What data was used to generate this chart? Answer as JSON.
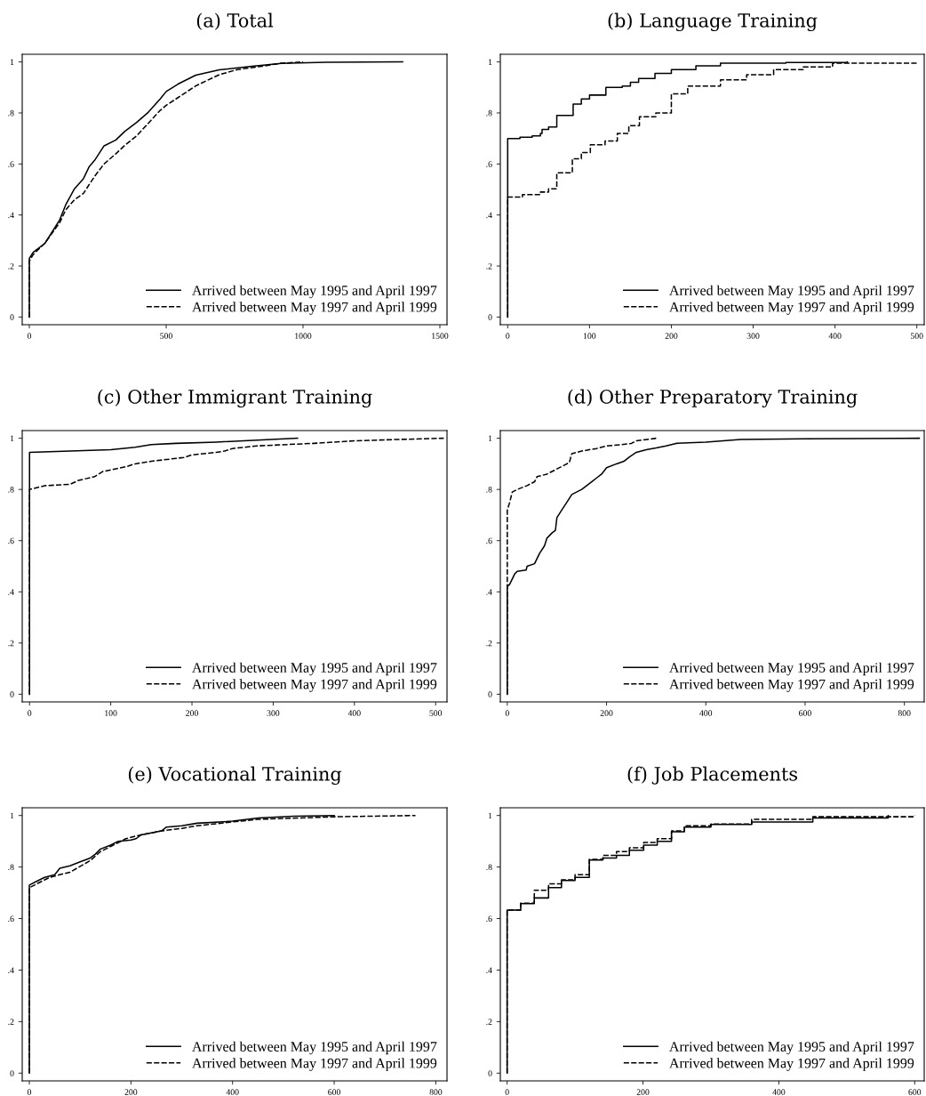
{
  "chart_data": [
    {
      "type": "line",
      "title": "(a) Total",
      "xlim": [
        -26,
        1526
      ],
      "xticks": [
        0,
        500,
        1000,
        1500
      ],
      "ylim": [
        -0.03,
        1.03
      ],
      "yticks": [
        0,
        {
          "value": 0.2,
          "label": ".2"
        },
        {
          "value": 0.4,
          "label": ".4"
        },
        {
          "value": 0.6,
          "label": ".6"
        },
        {
          "value": 0.8,
          "label": ".8"
        },
        1
      ],
      "legend": "bottom right",
      "grid": false,
      "series": [
        {
          "name": "Arrived between May 1995 and April 1997",
          "color": "#000000",
          "line_style": "solid",
          "x": [
            0,
            0,
            14,
            57,
            111,
            133,
            165,
            198,
            219,
            241,
            273,
            316,
            349,
            392,
            435,
            478,
            500,
            543,
            608,
            694,
            813,
            921,
            1083,
            1364
          ],
          "values": [
            0,
            0.23,
            0.254,
            0.289,
            0.381,
            0.44,
            0.503,
            0.543,
            0.59,
            0.618,
            0.671,
            0.694,
            0.728,
            0.763,
            0.803,
            0.855,
            0.884,
            0.913,
            0.948,
            0.969,
            0.983,
            0.994,
            0.999,
            1.0
          ]
        },
        {
          "name": "Arrived between May 1997 and April 1999",
          "color": "#000000",
          "line_style": "dashed",
          "x": [
            0,
            0,
            14,
            57,
            111,
            133,
            165,
            198,
            219,
            241,
            273,
            316,
            349,
            392,
            435,
            478,
            500,
            543,
            608,
            694,
            760,
            850,
            921,
            1000
          ],
          "values": [
            0,
            0.22,
            0.245,
            0.29,
            0.37,
            0.42,
            0.46,
            0.485,
            0.52,
            0.555,
            0.6,
            0.64,
            0.673,
            0.71,
            0.76,
            0.81,
            0.83,
            0.86,
            0.906,
            0.95,
            0.97,
            0.983,
            0.995,
            1.0
          ]
        }
      ]
    },
    {
      "type": "step",
      "title": "(b) Language Training",
      "xlim": [
        -9,
        509
      ],
      "xticks": [
        0,
        100,
        200,
        300,
        400,
        500
      ],
      "ylim": [
        -0.03,
        1.03
      ],
      "yticks": [
        0,
        {
          "value": 0.2,
          "label": ".2"
        },
        {
          "value": 0.4,
          "label": ".4"
        },
        {
          "value": 0.6,
          "label": ".6"
        },
        {
          "value": 0.8,
          "label": ".8"
        },
        1
      ],
      "legend": "bottom right",
      "grid": false,
      "series": [
        {
          "name": "Arrived between May 1995 and April 1997",
          "color": "#000000",
          "line_style": "solid",
          "x": [
            0,
            0,
            15,
            30,
            40,
            42,
            50,
            60,
            80,
            90,
            100,
            120,
            140,
            150,
            160,
            180,
            200,
            230,
            260,
            340,
            415
          ],
          "values": [
            0,
            0.7,
            0.705,
            0.71,
            0.72,
            0.735,
            0.745,
            0.79,
            0.835,
            0.855,
            0.87,
            0.9,
            0.905,
            0.92,
            0.935,
            0.955,
            0.97,
            0.985,
            0.995,
            0.998,
            1.0
          ]
        },
        {
          "name": "Arrived between May 1997 and April 1999",
          "color": "#000000",
          "line_style": "dashed",
          "x": [
            0,
            0,
            18,
            40,
            50,
            60,
            79,
            90,
            101,
            119,
            134,
            148,
            161,
            181,
            200,
            220,
            260,
            292,
            325,
            361,
            397,
            500
          ],
          "values": [
            0,
            0.47,
            0.48,
            0.49,
            0.503,
            0.565,
            0.62,
            0.645,
            0.675,
            0.69,
            0.72,
            0.75,
            0.785,
            0.8,
            0.875,
            0.905,
            0.93,
            0.95,
            0.97,
            0.98,
            0.995,
            1.0
          ]
        }
      ]
    },
    {
      "type": "line",
      "title": "(c) Other Immigrant Training",
      "xlim": [
        -9,
        514
      ],
      "xticks": [
        0,
        100,
        200,
        300,
        400,
        500
      ],
      "ylim": [
        -0.03,
        1.03
      ],
      "yticks": [
        0,
        {
          "value": 0.2,
          "label": ".2"
        },
        {
          "value": 0.4,
          "label": ".4"
        },
        {
          "value": 0.6,
          "label": ".6"
        },
        {
          "value": 0.8,
          "label": ".8"
        },
        1
      ],
      "legend": "bottom right",
      "grid": false,
      "series": [
        {
          "name": "Arrived between May 1995 and April 1997",
          "color": "#000000",
          "line_style": "solid",
          "x": [
            0,
            0,
            50,
            100,
            130,
            150,
            180,
            230,
            330
          ],
          "values": [
            0,
            0.945,
            0.95,
            0.955,
            0.965,
            0.975,
            0.98,
            0.985,
            1.0
          ]
        },
        {
          "name": "Arrived between May 1997 and April 1999",
          "color": "#000000",
          "line_style": "dashed",
          "x": [
            0,
            0,
            20,
            50,
            60,
            80,
            90,
            120,
            130,
            150,
            190,
            200,
            230,
            240,
            250,
            280,
            350,
            400,
            450,
            510
          ],
          "values": [
            0,
            0.8,
            0.815,
            0.82,
            0.835,
            0.85,
            0.87,
            0.89,
            0.9,
            0.91,
            0.925,
            0.935,
            0.945,
            0.95,
            0.96,
            0.97,
            0.98,
            0.99,
            0.995,
            1.0
          ]
        }
      ]
    },
    {
      "type": "line",
      "title": "(d) Other Preparatory Training",
      "xlim": [
        -14,
        840
      ],
      "xticks": [
        0,
        200,
        400,
        600,
        800
      ],
      "ylim": [
        -0.03,
        1.03
      ],
      "yticks": [
        0,
        {
          "value": 0.2,
          "label": ".2"
        },
        {
          "value": 0.4,
          "label": ".4"
        },
        {
          "value": 0.6,
          "label": ".6"
        },
        {
          "value": 0.8,
          "label": ".8"
        },
        1
      ],
      "legend": "bottom right",
      "grid": false,
      "series": [
        {
          "name": "Arrived between May 1995 and April 1997",
          "color": "#000000",
          "line_style": "solid",
          "x": [
            0,
            0,
            5,
            10,
            15,
            20,
            38,
            40,
            55,
            60,
            65,
            75,
            80,
            90,
            97,
            100,
            110,
            120,
            130,
            150,
            170,
            180,
            190,
            200,
            220,
            235,
            245,
            260,
            280,
            300,
            320,
            340,
            400,
            470,
            600,
            830
          ],
          "values": [
            0,
            0.42,
            0.43,
            0.45,
            0.47,
            0.48,
            0.485,
            0.5,
            0.51,
            0.53,
            0.55,
            0.58,
            0.61,
            0.63,
            0.64,
            0.69,
            0.72,
            0.75,
            0.78,
            0.8,
            0.83,
            0.845,
            0.86,
            0.885,
            0.9,
            0.91,
            0.925,
            0.945,
            0.955,
            0.962,
            0.97,
            0.98,
            0.985,
            0.995,
            0.998,
            1.0
          ]
        },
        {
          "name": "Arrived between May 1997 and April 1999",
          "color": "#000000",
          "line_style": "dashed",
          "x": [
            0,
            0,
            5,
            10,
            20,
            40,
            55,
            60,
            80,
            100,
            115,
            125,
            130,
            150,
            180,
            200,
            230,
            250,
            260,
            300
          ],
          "values": [
            0,
            0.72,
            0.75,
            0.79,
            0.8,
            0.815,
            0.83,
            0.85,
            0.86,
            0.88,
            0.895,
            0.905,
            0.94,
            0.95,
            0.96,
            0.97,
            0.975,
            0.98,
            0.99,
            1.0
          ]
        }
      ]
    },
    {
      "type": "line",
      "title": "(e) Vocational Training",
      "xlim": [
        -14,
        822
      ],
      "xticks": [
        0,
        200,
        400,
        600,
        800
      ],
      "ylim": [
        -0.03,
        1.03
      ],
      "yticks": [
        0,
        {
          "value": 0.2,
          "label": ".2"
        },
        {
          "value": 0.4,
          "label": ".4"
        },
        {
          "value": 0.6,
          "label": ".6"
        },
        {
          "value": 0.8,
          "label": ".8"
        },
        1
      ],
      "legend": "bottom right",
      "grid": false,
      "series": [
        {
          "name": "Arrived between May 1995 and April 1997",
          "color": "#000000",
          "line_style": "solid",
          "x": [
            0,
            0,
            15,
            30,
            50,
            60,
            80,
            100,
            120,
            130,
            140,
            160,
            175,
            200,
            210,
            220,
            260,
            270,
            300,
            330,
            400,
            450,
            520,
            600
          ],
          "values": [
            0,
            0.73,
            0.745,
            0.76,
            0.77,
            0.795,
            0.805,
            0.82,
            0.835,
            0.85,
            0.87,
            0.885,
            0.9,
            0.905,
            0.91,
            0.925,
            0.94,
            0.955,
            0.96,
            0.97,
            0.978,
            0.99,
            0.997,
            1.0
          ]
        },
        {
          "name": "Arrived between May 1997 and April 1999",
          "color": "#000000",
          "line_style": "dashed",
          "x": [
            0,
            0,
            15,
            40,
            80,
            120,
            140,
            170,
            190,
            220,
            260,
            300,
            330,
            400,
            450,
            600,
            760
          ],
          "values": [
            0,
            0.72,
            0.735,
            0.76,
            0.78,
            0.825,
            0.86,
            0.89,
            0.91,
            0.925,
            0.94,
            0.95,
            0.96,
            0.975,
            0.985,
            0.995,
            1.0
          ]
        }
      ]
    },
    {
      "type": "step",
      "title": "(f) Job Placements",
      "xlim": [
        -10,
        614
      ],
      "xticks": [
        0,
        200,
        400,
        600
      ],
      "ylim": [
        -0.03,
        1.03
      ],
      "yticks": [
        0,
        {
          "value": 0.2,
          "label": ".2"
        },
        {
          "value": 0.4,
          "label": ".4"
        },
        {
          "value": 0.6,
          "label": ".6"
        },
        {
          "value": 0.8,
          "label": ".8"
        },
        1
      ],
      "legend": "bottom right",
      "grid": false,
      "series": [
        {
          "name": "Arrived between May 1995 and April 1997",
          "color": "#000000",
          "line_style": "solid",
          "x": [
            0,
            0,
            20,
            40,
            61,
            80,
            100,
            121,
            141,
            161,
            180,
            201,
            221,
            242,
            261,
            300,
            360,
            450,
            561
          ],
          "values": [
            0,
            0.633,
            0.658,
            0.68,
            0.72,
            0.748,
            0.76,
            0.827,
            0.835,
            0.845,
            0.865,
            0.885,
            0.9,
            0.937,
            0.955,
            0.965,
            0.975,
            0.99,
            1.0
          ]
        },
        {
          "name": "Arrived between May 1997 and April 1999",
          "color": "#000000",
          "line_style": "dashed",
          "x": [
            0,
            0,
            20,
            40,
            61,
            80,
            100,
            121,
            141,
            161,
            180,
            201,
            221,
            242,
            261,
            300,
            360,
            450,
            600
          ],
          "values": [
            0,
            0.633,
            0.66,
            0.71,
            0.735,
            0.75,
            0.77,
            0.83,
            0.845,
            0.86,
            0.875,
            0.895,
            0.91,
            0.94,
            0.96,
            0.967,
            0.985,
            0.995,
            1.0
          ]
        }
      ]
    }
  ]
}
